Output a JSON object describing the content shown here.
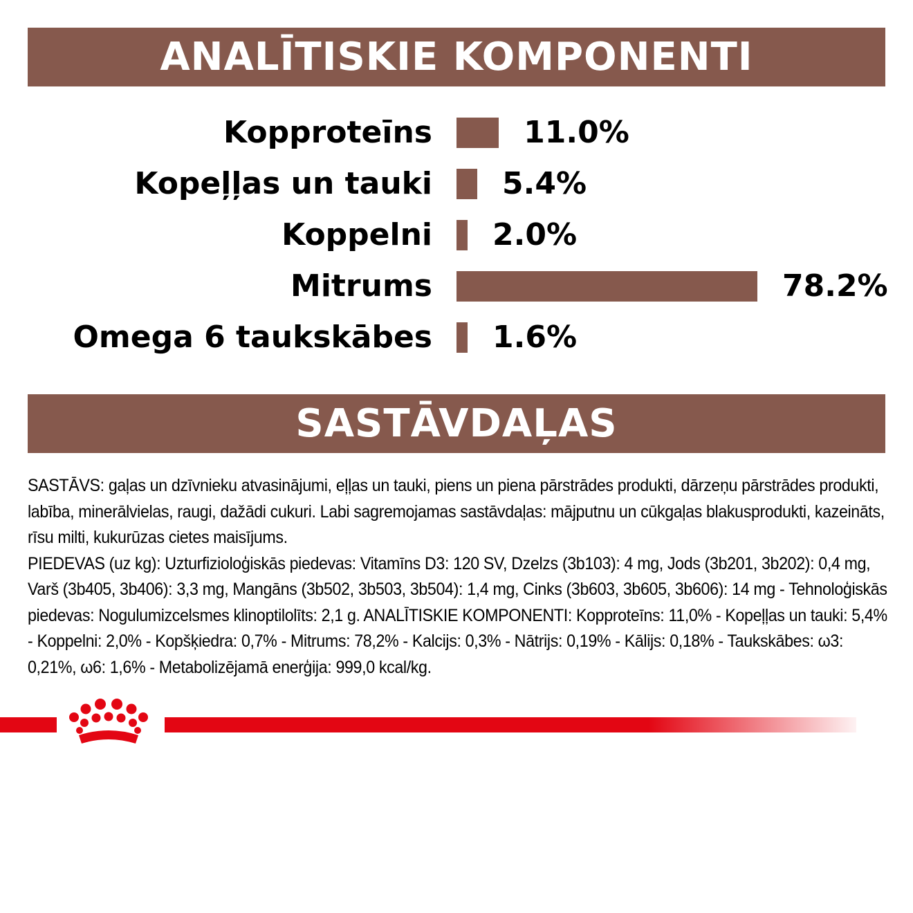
{
  "banners": {
    "analytical": "ANALĪTISKIE KOMPONENTI",
    "ingredients": "SASTĀVDAĻAS"
  },
  "colors": {
    "bar": "#86594d",
    "brand_red": "#e30613"
  },
  "chart_data": {
    "type": "bar",
    "orientation": "horizontal",
    "categories": [
      "Kopproteīns",
      "Kopeļļas un tauki",
      "Koppelni",
      "Mitrums",
      "Omega 6 taukskābes"
    ],
    "values": [
      11.0,
      5.4,
      2.0,
      78.2,
      1.6
    ],
    "value_labels": [
      "11.0%",
      "5.4%",
      "2.0%",
      "78.2%",
      "1.6%"
    ],
    "unit": "%"
  },
  "ingredients_text": [
    "SASTĀVS: gaļas un dzīvnieku atvasinājumi, eļļas un tauki, piens un piena pārstrādes produkti, dārzeņu pārstrādes produkti, labība, minerālvielas, raugi, dažādi cukuri. Labi sagremojamas sastāvdaļas: mājputnu un cūkgaļas blakusprodukti, kazeināts, rīsu milti, kukurūzas cietes maisījums.",
    "PIEDEVAS (uz kg): Uzturfizioloģiskās piedevas: Vitamīns D3: 120 SV, Dzelzs (3b103): 4 mg, Jods (3b201, 3b202): 0,4 mg, Varš (3b405, 3b406): 3,3 mg, Mangāns (3b502, 3b503, 3b504): 1,4 mg, Cinks (3b603, 3b605, 3b606): 14 mg - Tehnoloģiskās piedevas: Nogulumizcelsmes klinoptilolīts: 2,1 g. ANALĪTISKIE KOMPONENTI: Kopproteīns: 11,0% - Kopeļļas un tauki: 5,4% - Koppelni: 2,0% - Kopšķiedra: 0,7% - Mitrums: 78,2% - Kalcijs: 0,3% - Nātrijs: 0,19% - Kālijs: 0,18% - Taukskābes: ω3: 0,21%, ω6: 1,6% - Metabolizējamā enerģija: 999,0 kcal/kg."
  ],
  "logo": {
    "icon": "crown-icon"
  }
}
